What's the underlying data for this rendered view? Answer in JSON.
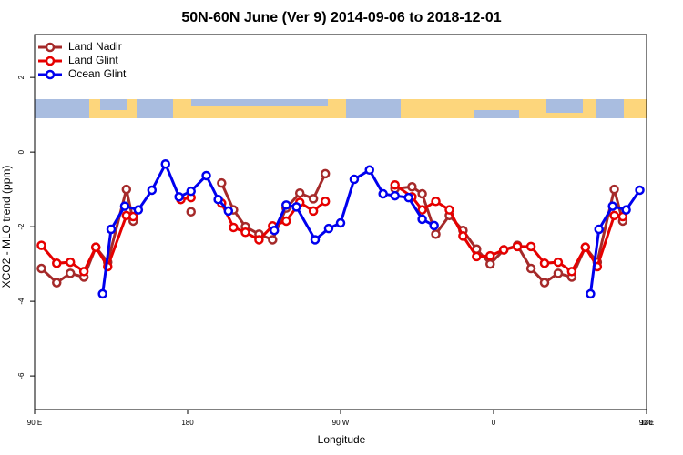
{
  "chart_data": {
    "type": "line",
    "title": "50N-60N June (Ver 9)   2014-09-06 to 2018-12-01",
    "x_label": "Longitude",
    "y_label": "XCO2 - MLO trend (ppm)",
    "xlim": [
      90,
      450
    ],
    "xticks": [
      {
        "value": 90,
        "label": "90 E"
      },
      180,
      {
        "value": 270,
        "label": "90 W"
      },
      {
        "value": 360,
        "label": "0"
      },
      {
        "value": 450,
        "label": "90 E"
      },
      {
        "value": 540,
        "label": "180"
      }
    ],
    "ylim": [
      -6.9,
      3.15
    ],
    "yticks": [
      -6,
      -4,
      -2,
      0,
      2
    ],
    "legend": "top-left",
    "series": [
      {
        "name": "Land Nadir",
        "color": "#a52a2a",
        "x": [
          94,
          103,
          111,
          119,
          126,
          133,
          144,
          148,
          null,
          182,
          null,
          200,
          207,
          214,
          222,
          230,
          238,
          246,
          254,
          261,
          null,
          302,
          312,
          318,
          326,
          334,
          342,
          350,
          358,
          366,
          374,
          382,
          390,
          398,
          406,
          414,
          421,
          431,
          436
        ],
        "values": [
          -3.12,
          -3.5,
          -3.25,
          -3.35,
          -2.55,
          -2.95,
          -1.0,
          -1.85,
          null,
          -1.6,
          null,
          -0.83,
          -1.55,
          -2.0,
          -2.2,
          -2.35,
          -1.5,
          -1.1,
          -1.25,
          -0.58,
          null,
          -0.98,
          -0.93,
          -1.12,
          -2.2,
          -1.7,
          -2.1,
          -2.6,
          -3.0,
          -2.62,
          -2.5,
          -3.12,
          -3.5,
          -3.25,
          -3.35,
          -2.55,
          -2.95,
          -1.0,
          -1.85
        ]
      },
      {
        "name": "Land Glint",
        "color": "#e60000",
        "x": [
          94,
          103,
          111,
          119,
          126,
          133,
          144,
          148,
          null,
          176,
          182,
          null,
          200,
          207,
          214,
          222,
          230,
          238,
          246,
          254,
          261,
          null,
          302,
          312,
          318,
          326,
          334,
          342,
          350,
          358,
          366,
          374,
          382,
          390,
          398,
          406,
          414,
          421,
          431,
          436
        ],
        "values": [
          -2.5,
          -2.98,
          -2.95,
          -3.2,
          -2.55,
          -3.07,
          -1.7,
          -1.73,
          null,
          -1.27,
          -1.22,
          null,
          -1.37,
          -2.02,
          -2.15,
          -2.35,
          -1.98,
          -1.85,
          -1.35,
          -1.58,
          -1.32,
          null,
          -0.88,
          -1.2,
          -1.55,
          -1.32,
          -1.55,
          -2.25,
          -2.8,
          -2.78,
          -2.62,
          -2.53,
          -2.53,
          -2.98,
          -2.95,
          -3.2,
          -2.55,
          -3.07,
          -1.7,
          -1.73
        ]
      },
      {
        "name": "Ocean Glint",
        "color": "#0000ee",
        "x": [
          130,
          135,
          143,
          151,
          159,
          167,
          175,
          182,
          191,
          198,
          204,
          null,
          231,
          238,
          244,
          255,
          263,
          270,
          278,
          287,
          295,
          302,
          310,
          318,
          325,
          null,
          417,
          422,
          430,
          438,
          446
        ],
        "values": [
          -3.8,
          -2.07,
          -1.45,
          -1.55,
          -1.02,
          -0.32,
          -1.2,
          -1.05,
          -0.63,
          -1.27,
          -1.58,
          null,
          -2.1,
          -1.42,
          -1.47,
          -2.35,
          -2.05,
          -1.9,
          -0.73,
          -0.48,
          -1.12,
          -1.17,
          -1.22,
          -1.8,
          -1.97,
          null,
          -3.8,
          -2.07,
          -1.45,
          -1.55,
          -1.02
        ]
      }
    ]
  }
}
